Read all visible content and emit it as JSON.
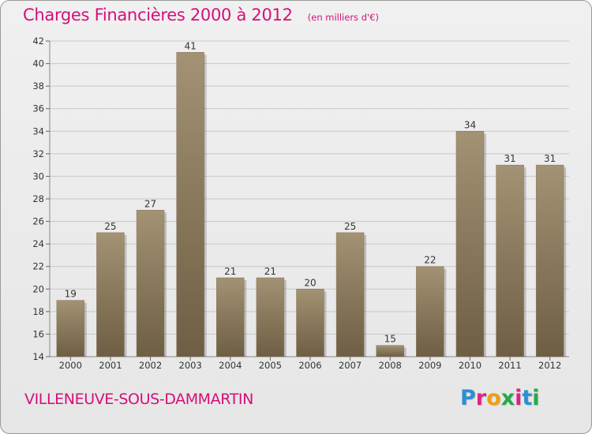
{
  "header": {
    "title": "Charges Financières 2000 à 2012",
    "unit": "(en milliers d'€)"
  },
  "footer": {
    "commune": "VILLENEUVE-SOUS-DAMMARTIN",
    "logo_text": "Proxiti"
  },
  "colors": {
    "title": "#d4107a",
    "bar_light": "#a39273",
    "bar_dark": "#6e5e44",
    "grid": "#c8c8c8",
    "axis_text": "#333333"
  },
  "logo_letters": [
    {
      "char": "P",
      "color": "#2b8fd4"
    },
    {
      "char": "r",
      "color": "#e0218a"
    },
    {
      "char": "o",
      "color": "#f39c12"
    },
    {
      "char": "x",
      "color": "#27a84a"
    },
    {
      "char": "i",
      "color": "#e0218a"
    },
    {
      "char": "t",
      "color": "#2b8fd4"
    },
    {
      "char": "i",
      "color": "#27a84a"
    }
  ],
  "chart_data": {
    "type": "bar",
    "title": "Charges Financières 2000 à 2012",
    "categories": [
      "2000",
      "2001",
      "2002",
      "2003",
      "2004",
      "2005",
      "2006",
      "2007",
      "2008",
      "2009",
      "2010",
      "2011",
      "2012"
    ],
    "values": [
      19,
      25,
      27,
      41,
      21,
      21,
      20,
      25,
      15,
      22,
      34,
      31,
      31
    ],
    "ylim": [
      14,
      42
    ],
    "yticks": [
      14,
      16,
      18,
      20,
      22,
      24,
      26,
      28,
      30,
      32,
      34,
      36,
      38,
      40,
      42
    ],
    "grid": true,
    "data_labels": true
  }
}
